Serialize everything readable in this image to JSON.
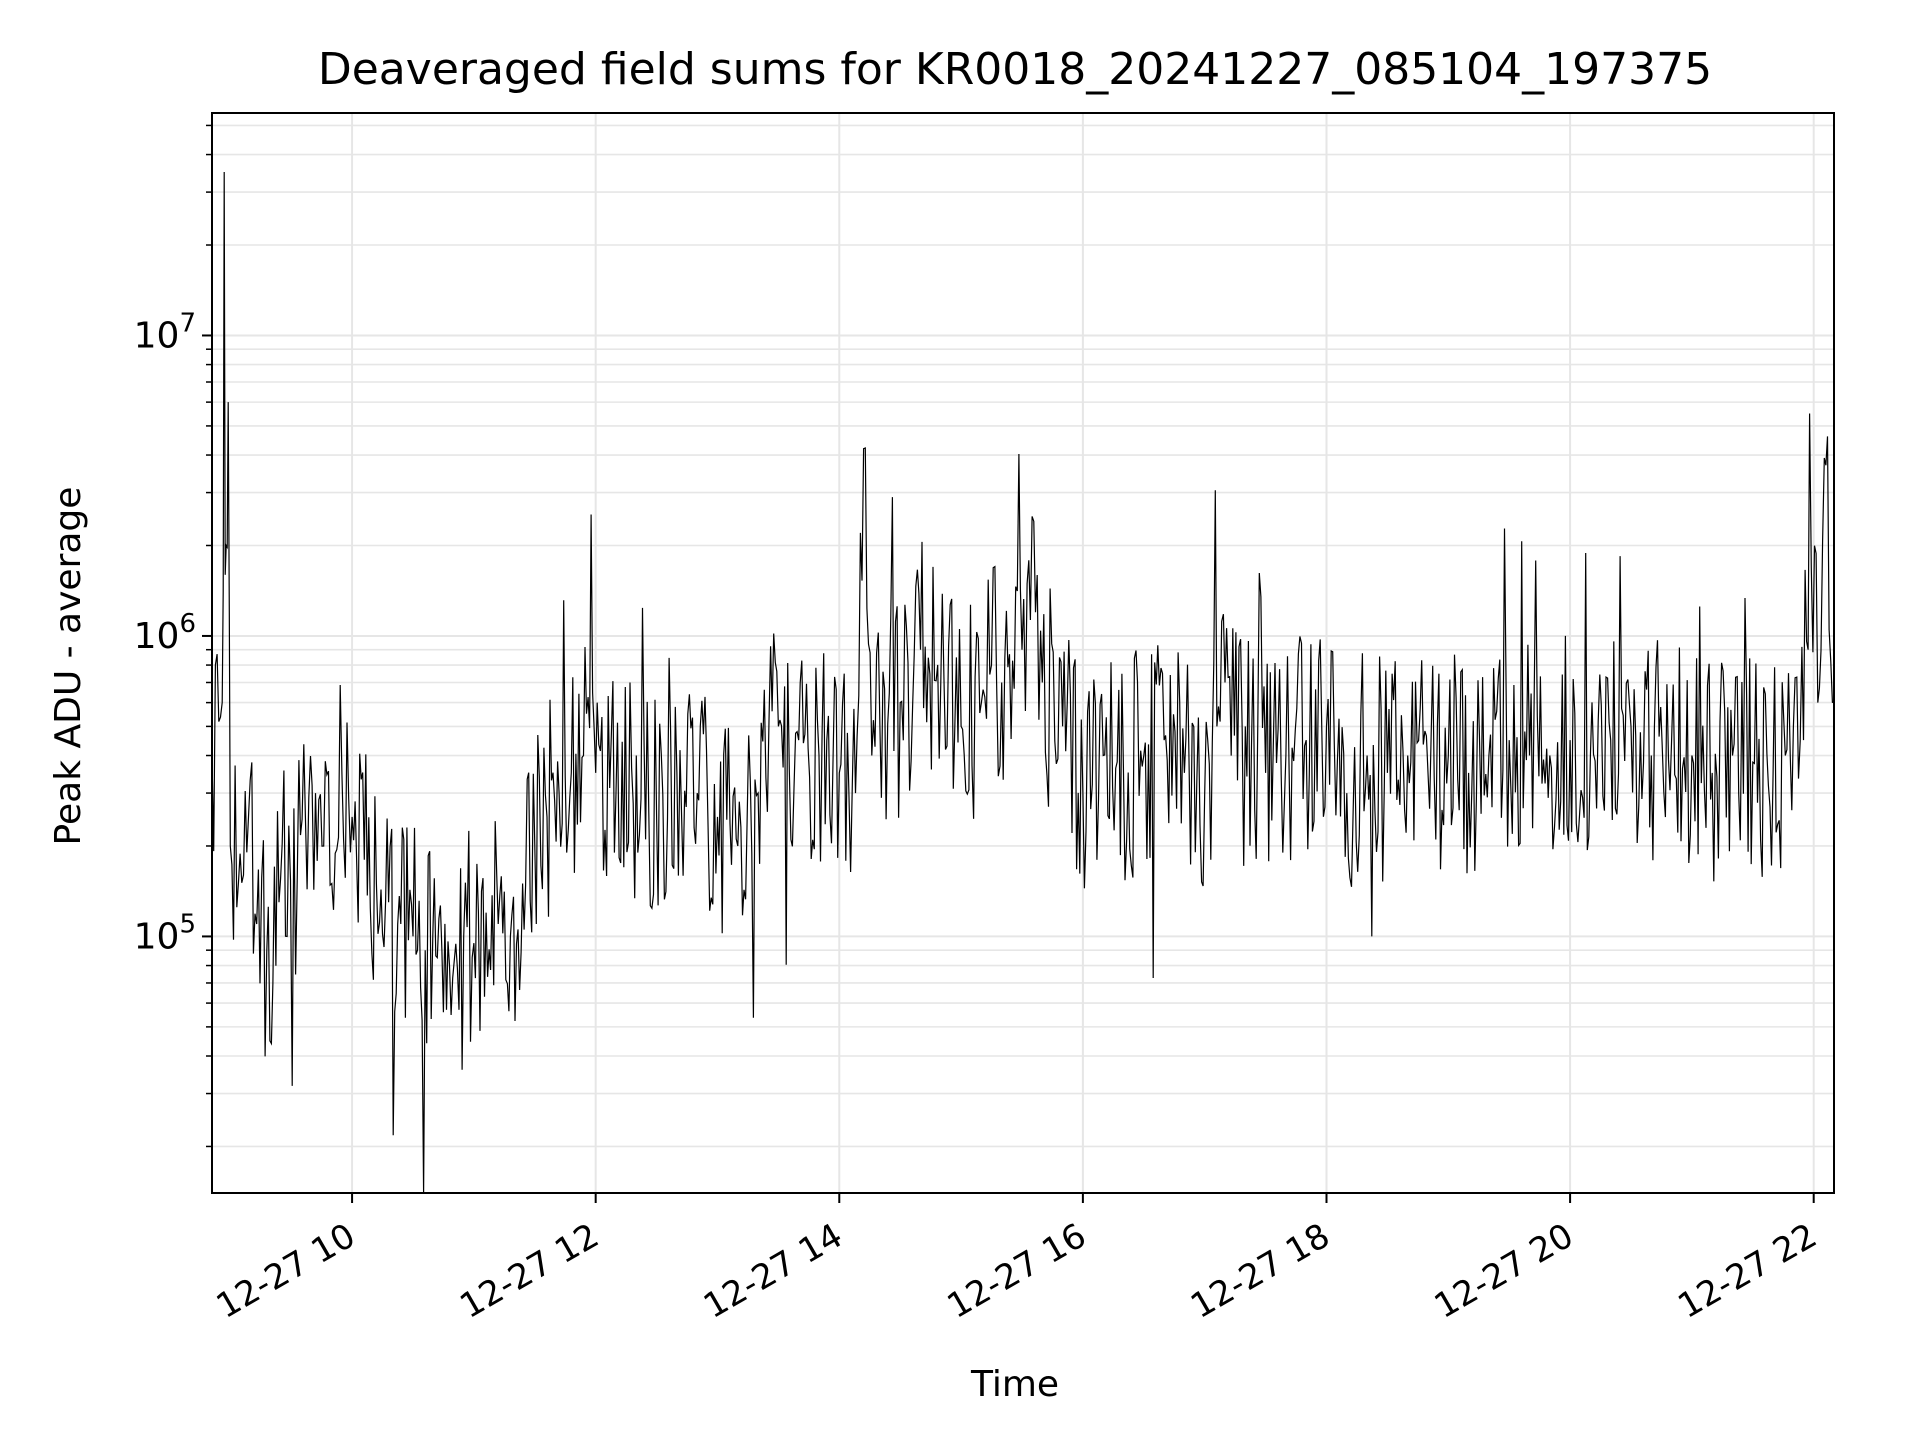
{
  "chart_data": {
    "type": "line",
    "title": "Deaveraged field sums for KR0018_20241227_085104_197375",
    "xlabel": "Time",
    "ylabel": "Peak ADU - average",
    "x_range": [
      "2024-12-27 08:51",
      "2024-12-27 22:10"
    ],
    "x_tick_values": [
      "2024-12-27 10:00",
      "2024-12-27 12:00",
      "2024-12-27 14:00",
      "2024-12-27 16:00",
      "2024-12-27 18:00",
      "2024-12-27 20:00",
      "2024-12-27 22:00"
    ],
    "x_tick_labels": [
      "12-27 10",
      "12-27 12",
      "12-27 14",
      "12-27 16",
      "12-27 18",
      "12-27 20",
      "12-27 22"
    ],
    "y_scale": "log",
    "ylim": [
      14000,
      55000000
    ],
    "y_major_ticks": [
      100000,
      1000000,
      10000000
    ],
    "y_tick_labels": [
      {
        "base": "10",
        "exp": "5"
      },
      {
        "base": "10",
        "exp": "6"
      },
      {
        "base": "10",
        "exp": "7"
      }
    ],
    "grid": true,
    "colors": {
      "line": "#000000",
      "grid": "#e6e6e6",
      "axes": "#000000"
    },
    "series": [
      {
        "x": [
          "2024-12-27 08:51",
          "2024-12-27 08:56",
          "2024-12-27 08:57",
          "2024-12-27 08:58",
          "2024-12-27 08:59",
          "2024-12-27 09:00",
          "2024-12-27 09:04",
          "2024-12-27 09:09",
          "2024-12-27 09:13",
          "2024-12-27 09:18",
          "2024-12-27 09:21",
          "2024-12-27 09:24",
          "2024-12-27 09:28",
          "2024-12-27 09:33",
          "2024-12-27 09:37",
          "2024-12-27 09:42",
          "2024-12-27 09:46",
          "2024-12-27 09:50",
          "2024-12-27 09:55",
          "2024-12-27 10:00",
          "2024-12-27 10:06",
          "2024-12-27 10:12",
          "2024-12-27 10:18",
          "2024-12-27 10:24",
          "2024-12-27 10:30",
          "2024-12-27 10:36",
          "2024-12-27 10:42",
          "2024-12-27 10:48",
          "2024-12-27 10:55",
          "2024-12-27 11:00",
          "2024-12-27 11:06",
          "2024-12-27 11:12",
          "2024-12-27 11:18",
          "2024-12-27 11:24",
          "2024-12-27 11:30",
          "2024-12-27 11:36",
          "2024-12-27 11:42",
          "2024-12-27 11:48",
          "2024-12-27 11:54",
          "2024-12-27 12:00",
          "2024-12-27 12:10",
          "2024-12-27 12:20",
          "2024-12-27 12:30",
          "2024-12-27 12:40",
          "2024-12-27 12:50",
          "2024-12-27 13:00",
          "2024-12-27 13:10",
          "2024-12-27 13:20",
          "2024-12-27 13:30",
          "2024-12-27 13:40",
          "2024-12-27 13:50",
          "2024-12-27 14:00",
          "2024-12-27 14:08",
          "2024-12-27 14:12",
          "2024-12-27 14:16",
          "2024-12-27 14:20",
          "2024-12-27 14:30",
          "2024-12-27 14:40",
          "2024-12-27 14:50",
          "2024-12-27 15:00",
          "2024-12-27 15:10",
          "2024-12-27 15:15",
          "2024-12-27 15:20",
          "2024-12-27 15:30",
          "2024-12-27 15:35",
          "2024-12-27 15:40",
          "2024-12-27 15:50",
          "2024-12-27 16:00",
          "2024-12-27 16:10",
          "2024-12-27 16:20",
          "2024-12-27 16:30",
          "2024-12-27 16:40",
          "2024-12-27 16:50",
          "2024-12-27 17:00",
          "2024-12-27 17:06",
          "2024-12-27 17:10",
          "2024-12-27 17:20",
          "2024-12-27 17:30",
          "2024-12-27 17:40",
          "2024-12-27 17:50",
          "2024-12-27 18:00",
          "2024-12-27 18:10",
          "2024-12-27 18:20",
          "2024-12-27 18:30",
          "2024-12-27 18:40",
          "2024-12-27 18:50",
          "2024-12-27 19:00",
          "2024-12-27 19:10",
          "2024-12-27 19:20",
          "2024-12-27 19:30",
          "2024-12-27 19:40",
          "2024-12-27 19:50",
          "2024-12-27 20:00",
          "2024-12-27 20:10",
          "2024-12-27 20:20",
          "2024-12-27 20:30",
          "2024-12-27 20:40",
          "2024-12-27 20:50",
          "2024-12-27 21:00",
          "2024-12-27 21:10",
          "2024-12-27 21:20",
          "2024-12-27 21:30",
          "2024-12-27 21:40",
          "2024-12-27 21:46",
          "2024-12-27 21:50",
          "2024-12-27 21:55",
          "2024-12-27 21:58",
          "2024-12-27 22:02",
          "2024-12-27 22:06",
          "2024-12-27 22:10"
        ],
        "y": [
          400000,
          600000,
          35000000,
          2000000,
          6000000,
          200000,
          150000,
          250000,
          110000,
          90000,
          70000,
          130000,
          100000,
          160000,
          250000,
          300000,
          200000,
          150000,
          350000,
          250000,
          180000,
          150000,
          130000,
          110000,
          100000,
          90000,
          85000,
          80000,
          100000,
          95000,
          120000,
          110000,
          100000,
          150000,
          200000,
          250000,
          300000,
          350000,
          400000,
          350000,
          300000,
          400000,
          250000,
          350000,
          300000,
          250000,
          200000,
          300000,
          500000,
          450000,
          400000,
          350000,
          300000,
          4200000,
          400000,
          500000,
          600000,
          900000,
          700000,
          500000,
          600000,
          800000,
          700000,
          900000,
          2500000,
          700000,
          500000,
          300000,
          400000,
          350000,
          400000,
          450000,
          350000,
          300000,
          500000,
          700000,
          500000,
          350000,
          400000,
          450000,
          500000,
          300000,
          400000,
          350000,
          400000,
          350000,
          400000,
          350000,
          400000,
          450000,
          400000,
          400000,
          450000,
          400000,
          450000,
          500000,
          400000,
          450000,
          400000,
          350000,
          400000,
          380000,
          350000,
          400000,
          500000,
          450000,
          5500000,
          600000,
          3700000,
          600000
        ]
      }
    ]
  }
}
